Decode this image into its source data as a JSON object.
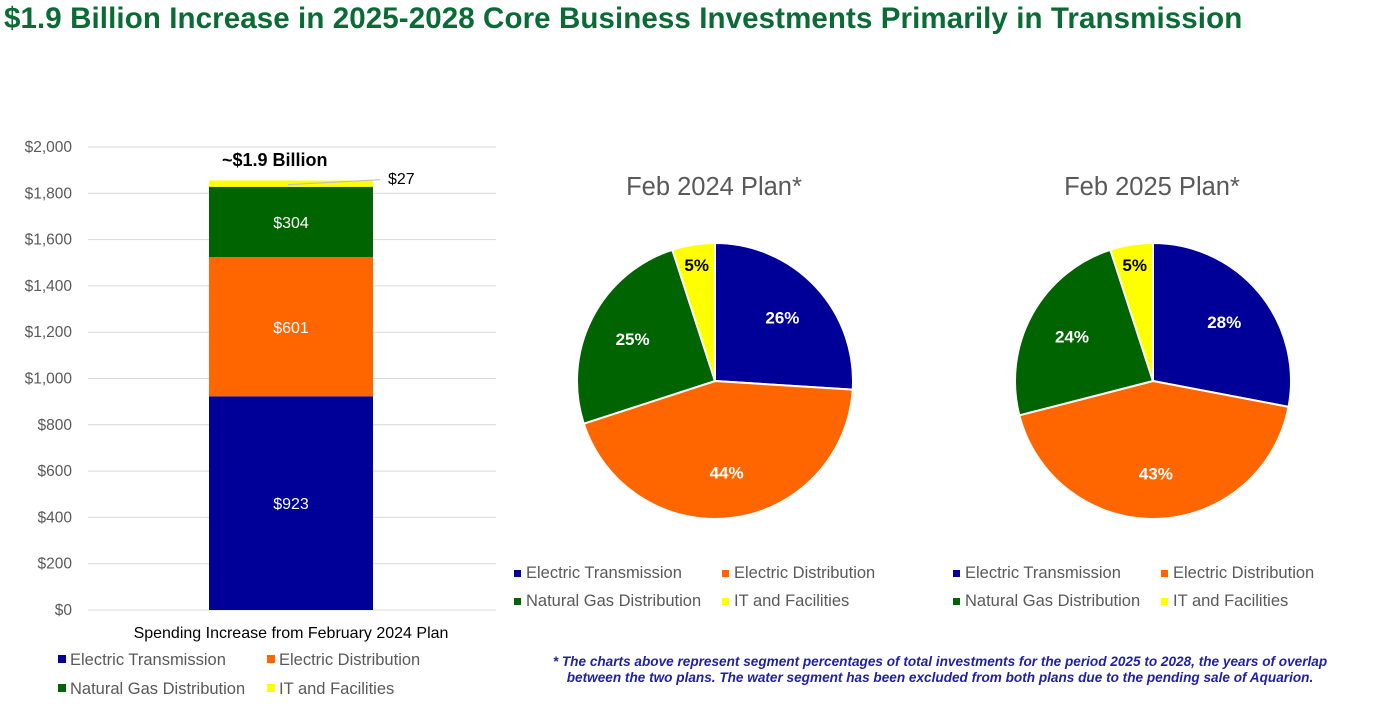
{
  "title": "$1.9 Billion Increase in 2025-2028 Core Business Investments Primarily in Transmission",
  "footnote": "* The charts above represent segment percentages of total investments for the period 2025 to 2028, the years of overlap between the two plans. The water segment has been excluded from both plans due to the pending sale of Aquarion.",
  "colors": {
    "transmission": "#000099",
    "distribution": "#ff6600",
    "gas": "#006400",
    "it": "#ffff00",
    "grid": "#d9d9d9",
    "axis_text": "#595959"
  },
  "chart_data": [
    {
      "type": "bar",
      "stacked": true,
      "categories": [
        "Spending Increase from February 2024 Plan"
      ],
      "series": [
        {
          "name": "Electric Transmission",
          "values": [
            923
          ],
          "label": "$923",
          "color": "#000099"
        },
        {
          "name": "Electric Distribution",
          "values": [
            601
          ],
          "label": "$601",
          "color": "#ff6600"
        },
        {
          "name": "Natural Gas Distribution",
          "values": [
            304
          ],
          "label": "$304",
          "color": "#006400"
        },
        {
          "name": "IT and Facilities",
          "values": [
            27
          ],
          "label": "$27",
          "color": "#ffff00"
        }
      ],
      "ylim": [
        0,
        2000
      ],
      "yticks": [
        0,
        200,
        400,
        600,
        800,
        1000,
        1200,
        1400,
        1600,
        1800,
        2000
      ],
      "ytick_labels": [
        "$0",
        "$200",
        "$400",
        "$600",
        "$800",
        "$1,000",
        "$1,200",
        "$1,400",
        "$1,600",
        "$1,800",
        "$2,000"
      ],
      "total_label": "~$1.9 Billion",
      "xlabel": "Spending Increase from February 2024 Plan",
      "legend": [
        "Electric Transmission",
        "Electric Distribution",
        "Natural Gas Distribution",
        "IT and Facilities"
      ]
    },
    {
      "type": "pie",
      "title": "Feb 2024 Plan*",
      "slices": [
        {
          "name": "Electric Transmission",
          "value": 26,
          "label": "26%",
          "color": "#000099"
        },
        {
          "name": "Electric Distribution",
          "value": 44,
          "label": "44%",
          "color": "#ff6600"
        },
        {
          "name": "Natural Gas Distribution",
          "value": 25,
          "label": "25%",
          "color": "#006400"
        },
        {
          "name": "IT and Facilities",
          "value": 5,
          "label": "5%",
          "color": "#ffff00"
        }
      ],
      "legend": [
        "Electric Transmission",
        "Electric Distribution",
        "Natural Gas Distribution",
        "IT and Facilities"
      ]
    },
    {
      "type": "pie",
      "title": "Feb 2025 Plan*",
      "slices": [
        {
          "name": "Electric Transmission",
          "value": 28,
          "label": "28%",
          "color": "#000099"
        },
        {
          "name": "Electric Distribution",
          "value": 43,
          "label": "43%",
          "color": "#ff6600"
        },
        {
          "name": "Natural Gas Distribution",
          "value": 24,
          "label": "24%",
          "color": "#006400"
        },
        {
          "name": "IT and Facilities",
          "value": 5,
          "label": "5%",
          "color": "#ffff00"
        }
      ],
      "legend": [
        "Electric Transmission",
        "Electric Distribution",
        "Natural Gas Distribution",
        "IT and Facilities"
      ]
    }
  ]
}
